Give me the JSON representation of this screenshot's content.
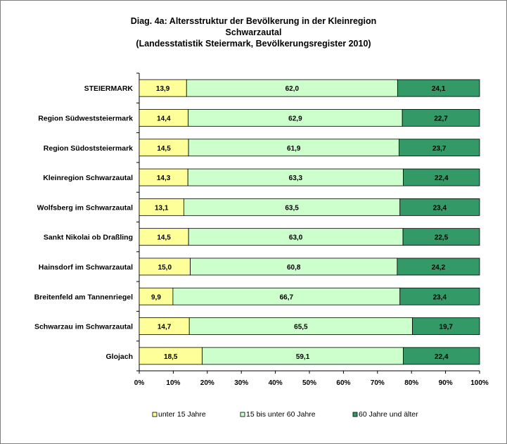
{
  "title_lines": [
    "Diag. 4a: Altersstruktur  der Bevölkerung  in der Kleinregion",
    "Schwarzautal",
    "(Landesstatistik  Steiermark,  Bevölkerungsregister  2010)"
  ],
  "colors": {
    "unter15": "#ffff99",
    "mid": "#ccffcc",
    "older": "#339966",
    "border": "#000000"
  },
  "chart_data": {
    "type": "bar",
    "orientation": "horizontal",
    "stacked": "percent",
    "title": "Diag. 4a: Altersstruktur  der Bevölkerung  in der Kleinregion Schwarzautal (Landesstatistik  Steiermark,  Bevölkerungsregister  2010)",
    "categories": [
      "STEIERMARK",
      "Region Südweststeiermark",
      "Region Südoststeiermark",
      "Kleinregion Schwarzautal",
      "Wolfsberg im Schwarzautal",
      "Sankt Nikolai ob Draßling",
      "Hainsdorf im Schwarzautal",
      "Breitenfeld am Tannenriegel",
      "Schwarzau im Schwarzautal",
      "Glojach"
    ],
    "series": [
      {
        "name": "unter 15 Jahre",
        "values": [
          13.9,
          14.4,
          14.5,
          14.3,
          13.1,
          14.5,
          15.0,
          9.9,
          14.7,
          18.5
        ],
        "labels": [
          "13,9",
          "14,4",
          "14,5",
          "14,3",
          "13,1",
          "14,5",
          "15,0",
          "9,9",
          "14,7",
          "18,5"
        ]
      },
      {
        "name": "15 bis unter 60 Jahre",
        "values": [
          62.0,
          62.9,
          61.9,
          63.3,
          63.5,
          63.0,
          60.8,
          66.7,
          65.5,
          59.1
        ],
        "labels": [
          "62,0",
          "62,9",
          "61,9",
          "63,3",
          "63,5",
          "63,0",
          "60,8",
          "66,7",
          "65,5",
          "59,1"
        ]
      },
      {
        "name": "60 Jahre und älter",
        "values": [
          24.1,
          22.7,
          23.7,
          22.4,
          23.4,
          22.5,
          24.2,
          23.4,
          19.7,
          22.4
        ],
        "labels": [
          "24,1",
          "22,7",
          "23,7",
          "22,4",
          "23,4",
          "22,5",
          "24,2",
          "23,4",
          "19,7",
          "22,4"
        ]
      }
    ],
    "xlim": [
      0,
      100
    ],
    "x_ticks": [
      "0%",
      "10%",
      "20%",
      "30%",
      "40%",
      "50%",
      "60%",
      "70%",
      "80%",
      "90%",
      "100%"
    ],
    "grid": false,
    "legend_position": "bottom"
  }
}
